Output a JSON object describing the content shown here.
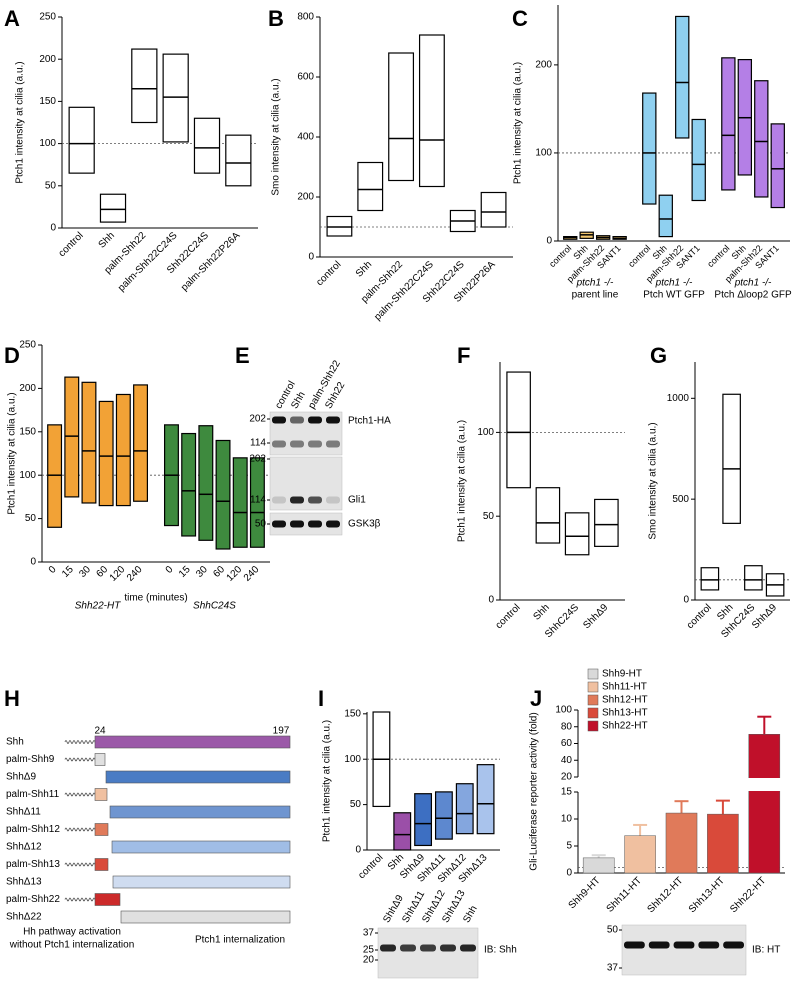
{
  "chart_data": [
    {
      "panel": "A",
      "type": "box",
      "ylabel": "Ptch1 intensity at cilia (a.u.)",
      "ylim": [
        0,
        250
      ],
      "yticks": [
        0,
        50,
        100,
        150,
        200,
        250
      ],
      "reference": 100,
      "series": [
        {
          "color": "#ffffff",
          "categories": [
            "control",
            "Shh",
            "palm-Shh22",
            "palm-Shh22C24S",
            "Shh22C24S",
            "palm-Shh22P26A"
          ],
          "low": [
            65,
            7,
            125,
            102,
            65,
            50
          ],
          "median": [
            100,
            22,
            165,
            155,
            95,
            77
          ],
          "high": [
            143,
            40,
            212,
            206,
            130,
            110
          ]
        }
      ]
    },
    {
      "panel": "B",
      "type": "box",
      "ylabel": "Smo intensity at cilia (a.u.)",
      "ylim": [
        0,
        800
      ],
      "yticks": [
        0,
        200,
        400,
        600,
        800
      ],
      "reference": 100,
      "series": [
        {
          "color": "#ffffff",
          "categories": [
            "control",
            "Shh",
            "palm-Shh22",
            "palm-Shh22C24S",
            "Shh22C24S",
            "Shh22P26A"
          ],
          "low": [
            70,
            155,
            255,
            235,
            85,
            100
          ],
          "median": [
            100,
            225,
            395,
            390,
            120,
            150
          ],
          "high": [
            135,
            315,
            680,
            740,
            155,
            215
          ]
        }
      ]
    },
    {
      "panel": "C",
      "type": "box",
      "ylabel": "Ptch1 intensity at cilia (a.u.)",
      "ylim": [
        0,
        268
      ],
      "yticks": [
        0,
        100,
        200
      ],
      "reference": 100,
      "series": [
        {
          "name": "ptch1 -/-",
          "note": "parent line",
          "color": "#f2c66d",
          "label_color": "#b07a1e",
          "categories": [
            "control",
            "Shh",
            "palm-Shh22",
            "SANT1"
          ],
          "low": [
            2,
            3,
            2,
            2
          ],
          "median": [
            4,
            7,
            4,
            3
          ],
          "high": [
            5,
            10,
            6,
            5
          ]
        },
        {
          "name": "ptch1 -/-",
          "note": "Ptch WT GFP",
          "color": "#8fd0f0",
          "label_color": "#3050d8",
          "categories": [
            "control",
            "Shh",
            "palm-Shh22",
            "SANT1"
          ],
          "low": [
            42,
            5,
            117,
            46
          ],
          "median": [
            100,
            25,
            180,
            87
          ],
          "high": [
            168,
            52,
            255,
            138
          ]
        },
        {
          "name": "ptch1 -/-",
          "note": "Ptch Δloop2 GFP",
          "color": "#b47fe6",
          "label_color": "#8a3ad8",
          "categories": [
            "control",
            "Shh",
            "palm-Shh22",
            "SANT1"
          ],
          "low": [
            58,
            75,
            50,
            38
          ],
          "median": [
            120,
            140,
            113,
            82
          ],
          "high": [
            208,
            206,
            182,
            133
          ]
        }
      ]
    },
    {
      "panel": "D",
      "type": "box",
      "ylabel": "Ptch1 intensity at cilia (a.u.)",
      "xlabel": "time (minutes)",
      "ylim": [
        0,
        250
      ],
      "yticks": [
        0,
        50,
        100,
        150,
        200,
        250
      ],
      "reference": 100,
      "series": [
        {
          "name": "Shh22-HT",
          "color": "#f2a236",
          "label_color": "#c86a1a",
          "categories": [
            "0",
            "15",
            "30",
            "60",
            "120",
            "240"
          ],
          "low": [
            40,
            75,
            68,
            65,
            65,
            70
          ],
          "median": [
            100,
            145,
            128,
            122,
            122,
            128
          ],
          "high": [
            158,
            213,
            207,
            185,
            193,
            204
          ]
        },
        {
          "name": "ShhC24S",
          "color": "#3e8a3e",
          "label_color": "#2e6e2e",
          "categories": [
            "0",
            "15",
            "30",
            "60",
            "120",
            "240"
          ],
          "low": [
            42,
            30,
            25,
            15,
            17,
            17
          ],
          "median": [
            100,
            82,
            78,
            70,
            57,
            57
          ],
          "high": [
            158,
            148,
            157,
            140,
            120,
            120
          ]
        }
      ]
    },
    {
      "panel": "F",
      "type": "box",
      "ylabel": "Ptch1 intensity at cilia (a.u.)",
      "ylim": [
        0,
        142
      ],
      "yticks": [
        0,
        50,
        100
      ],
      "reference": 100,
      "series": [
        {
          "color": "#ffffff",
          "categories": [
            "control",
            "Shh",
            "ShhC24S",
            "ShhΔ9"
          ],
          "low": [
            67,
            34,
            27,
            32
          ],
          "median": [
            100,
            46,
            38,
            45
          ],
          "high": [
            136,
            67,
            52,
            60
          ]
        }
      ]
    },
    {
      "panel": "G",
      "type": "box",
      "ylabel": "Smo intensity at cilia (a.u.)",
      "ylim": [
        0,
        1180
      ],
      "yticks": [
        0,
        500,
        1000
      ],
      "reference": 100,
      "series": [
        {
          "color": "#ffffff",
          "categories": [
            "control",
            "Shh",
            "ShhC24S",
            "ShhΔ9"
          ],
          "low": [
            50,
            380,
            50,
            20
          ],
          "median": [
            100,
            650,
            100,
            75
          ],
          "high": [
            160,
            1020,
            170,
            130
          ]
        }
      ]
    },
    {
      "panel": "I",
      "type": "box",
      "ylabel": "Ptch1 intensity at cilia (a.u.)",
      "ylim": [
        0,
        152
      ],
      "yticks": [
        0,
        50,
        100,
        150
      ],
      "reference": 100,
      "series": [
        {
          "color": "#ffffff",
          "colors": [
            "#ffffff",
            "#9b4fa8",
            "#3d6fc2",
            "#5d88cf",
            "#84a6de",
            "#a9c3ec"
          ],
          "categories": [
            "control",
            "Shh",
            "ShhΔ9",
            "ShhΔ11",
            "ShhΔ12",
            "ShhΔ13"
          ],
          "low": [
            48,
            0,
            5,
            12,
            18,
            18
          ],
          "median": [
            100,
            17,
            29,
            35,
            40,
            51
          ],
          "high": [
            152,
            41,
            62,
            64,
            73,
            94
          ]
        }
      ]
    },
    {
      "panel": "J",
      "type": "bar",
      "ylabel": "Gli-Luciferase reporter activity (fold)",
      "ylim": [
        0,
        100
      ],
      "ybreak": [
        15,
        20
      ],
      "yticks": [
        0,
        5,
        10,
        15,
        20,
        40,
        60,
        80,
        100
      ],
      "reference": 1,
      "legend": "top-left",
      "categories": [
        "Shh9-HT",
        "Shh11-HT",
        "Shh12-HT",
        "Shh13-HT",
        "Shh22-HT"
      ],
      "values": [
        2.8,
        6.9,
        11.1,
        10.9,
        71
      ],
      "errors": [
        0.5,
        2,
        2.2,
        2.5,
        21
      ],
      "colors": [
        "#d9d9d9",
        "#f0c0a0",
        "#e07a5a",
        "#d94a3a",
        "#c0102a"
      ]
    }
  ],
  "blots": [
    {
      "panel": "E",
      "lanes": [
        "control",
        "Shh",
        "palm-Shh22",
        "Shh22"
      ],
      "markers": [
        202,
        114,
        202,
        114,
        50
      ],
      "labels": [
        "Ptch1-HA",
        "Gli1",
        "GSK3β"
      ]
    },
    {
      "lanes": [
        "ShhΔ9",
        "ShhΔ11",
        "ShhΔ12",
        "ShhΔ13",
        "Shh"
      ],
      "markers": [
        37,
        25,
        20
      ],
      "labels": [
        "IB: Shh"
      ]
    },
    {
      "markers": [
        50,
        37
      ],
      "labels": [
        "IB: HT"
      ]
    }
  ],
  "diagram": {
    "panel": "H",
    "start": 24,
    "end": 197,
    "rows": [
      "Shh",
      "palm-Shh9",
      "ShhΔ9",
      "palm-Shh11",
      "ShhΔ11",
      "palm-Shh12",
      "ShhΔ12",
      "palm-Shh13",
      "ShhΔ13",
      "palm-Shh22",
      "ShhΔ22"
    ],
    "notes": [
      "Hh pathway activation",
      "without Ptch1 internalization",
      "Ptch1 internalization"
    ]
  }
}
